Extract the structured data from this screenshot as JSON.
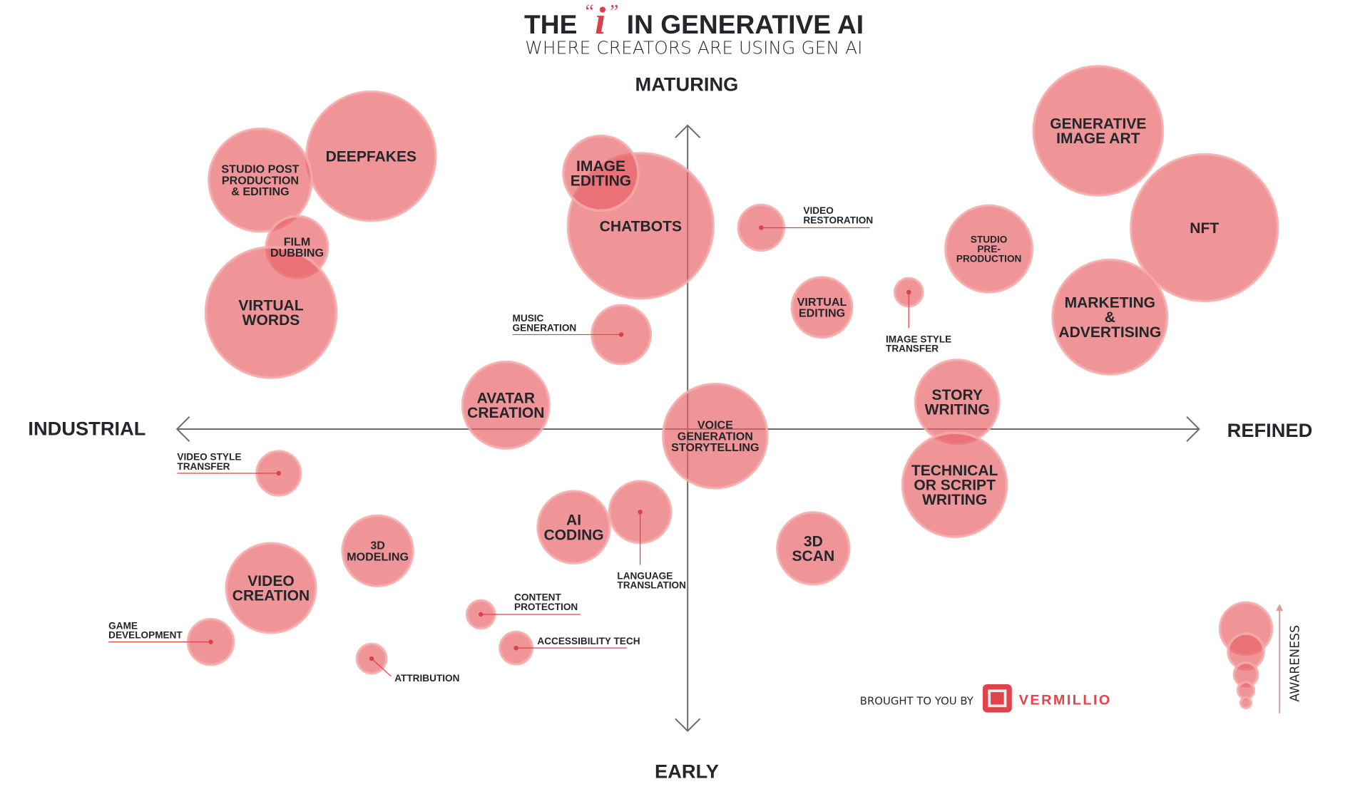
{
  "header": {
    "title_before": "THE",
    "title_i": "i",
    "title_after": "IN GENERATIVE AI",
    "subtitle": "WHERE CREATORS ARE USING GEN AI"
  },
  "footer": {
    "brought_by": "BROUGHT TO YOU BY",
    "brand": "VERMILLIO"
  },
  "colors": {
    "bubble": "#ee8f90",
    "accent": "#e0434b",
    "text": "#23262b"
  },
  "chart_data": {
    "type": "scatter",
    "title": "THE \"i\" IN GENERATIVE AI",
    "subtitle": "WHERE CREATORS ARE USING GEN AI",
    "axes": {
      "x": {
        "min_label": "INDUSTRIAL",
        "max_label": "REFINED",
        "range": [
          -100,
          100
        ]
      },
      "y": {
        "min_label": "EARLY",
        "max_label": "MATURING",
        "range": [
          -100,
          100
        ]
      }
    },
    "size_legend": {
      "label": "AWARENESS",
      "sizes": [
        70,
        48,
        32,
        22,
        14
      ]
    },
    "grid": false,
    "points": [
      {
        "lines": [
          "DEEPFAKES"
        ],
        "x": -62.0,
        "y": 90.1,
        "awareness": 88,
        "text": "lg",
        "label": "inside"
      },
      {
        "lines": [
          "STUDIO POST",
          "PRODUCTION",
          "& EDITING"
        ],
        "x": -83.7,
        "y": 82.2,
        "awareness": 70,
        "text": "md",
        "label": "inside"
      },
      {
        "lines": [
          "FILM",
          "DUBBING"
        ],
        "x": -76.5,
        "y": 60.1,
        "awareness": 42,
        "text": "md",
        "label": "inside"
      },
      {
        "lines": [
          "VIRTUAL",
          "WORDS"
        ],
        "x": -81.6,
        "y": 38.5,
        "awareness": 89,
        "text": "lg",
        "label": "inside"
      },
      {
        "lines": [
          "CHATBOTS"
        ],
        "x": -9.2,
        "y": 67.1,
        "awareness": 99,
        "text": "lg",
        "label": "inside"
      },
      {
        "lines": [
          "IMAGE",
          "EDITING"
        ],
        "x": -17.0,
        "y": 84.5,
        "awareness": 51,
        "text": "lg",
        "label": "inside"
      },
      {
        "lines": [
          "VIDEO",
          "RESTORATION"
        ],
        "x": 14.4,
        "y": 66.5,
        "awareness": 31,
        "text": "sm",
        "label": "right"
      },
      {
        "lines": [
          "MUSIC",
          "GENERATION"
        ],
        "x": -13.0,
        "y": 31.2,
        "awareness": 40,
        "text": "sm",
        "label": "left"
      },
      {
        "lines": [
          "VIRTUAL",
          "EDITING"
        ],
        "x": 26.3,
        "y": 40.2,
        "awareness": 41,
        "text": "md",
        "label": "inside"
      },
      {
        "lines": [
          "IMAGE STYLE",
          "TRANSFER"
        ],
        "x": 43.3,
        "y": 45.2,
        "awareness": 19,
        "text": "sm",
        "label": "below"
      },
      {
        "lines": [
          "STUDIO",
          "PRE-",
          "PRODUCTION"
        ],
        "x": 59.0,
        "y": 59.5,
        "awareness": 59,
        "text": "sm",
        "label": "inside"
      },
      {
        "lines": [
          "GENERATIVE",
          "IMAGE ART"
        ],
        "x": 80.4,
        "y": 98.5,
        "awareness": 88,
        "text": "lg",
        "label": "inside"
      },
      {
        "lines": [
          "NFT"
        ],
        "x": 101.2,
        "y": 66.5,
        "awareness": 100,
        "text": "lg",
        "label": "inside"
      },
      {
        "lines": [
          "MARKETING",
          "&",
          "ADVERTISING"
        ],
        "x": 82.7,
        "y": 37.0,
        "awareness": 78,
        "text": "lg",
        "label": "inside"
      },
      {
        "lines": [
          "AVATAR",
          "CREATION"
        ],
        "x": -35.6,
        "y": 7.9,
        "awareness": 59,
        "text": "lg",
        "label": "inside"
      },
      {
        "lines": [
          "VOICE",
          "GENERATION",
          "STORYTELLING"
        ],
        "x": 5.4,
        "y": -2.3,
        "awareness": 71,
        "text": "md",
        "label": "inside"
      },
      {
        "lines": [
          "STORY",
          "WRITING"
        ],
        "x": 52.8,
        "y": 9.0,
        "awareness": 57,
        "text": "lg",
        "label": "inside"
      },
      {
        "lines": [
          "TECHNICAL",
          "OR SCRIPT",
          "WRITING"
        ],
        "x": 52.3,
        "y": -18.4,
        "awareness": 71,
        "text": "lg",
        "label": "inside"
      },
      {
        "lines": [
          "VIDEO STYLE",
          "TRANSFER"
        ],
        "x": -80.1,
        "y": -14.6,
        "awareness": 30,
        "text": "sm",
        "label": "left"
      },
      {
        "lines": [
          "AI",
          "CODING"
        ],
        "x": -22.3,
        "y": -32.4,
        "awareness": 49,
        "text": "lg",
        "label": "inside"
      },
      {
        "lines": [
          "LANGUAGE",
          "TRANSLATION"
        ],
        "x": -9.3,
        "y": -27.4,
        "awareness": 42,
        "text": "sm",
        "label": "below"
      },
      {
        "lines": [
          "3D",
          "SCAN"
        ],
        "x": 24.6,
        "y": -39.4,
        "awareness": 49,
        "text": "lg",
        "label": "inside"
      },
      {
        "lines": [
          "3D",
          "MODELING"
        ],
        "x": -60.7,
        "y": -40.2,
        "awareness": 48,
        "text": "md",
        "label": "inside"
      },
      {
        "lines": [
          "VIDEO",
          "CREATION"
        ],
        "x": -81.6,
        "y": -52.5,
        "awareness": 61,
        "text": "lg",
        "label": "inside"
      },
      {
        "lines": [
          "CONTENT",
          "PROTECTION"
        ],
        "x": -40.5,
        "y": -61.2,
        "awareness": 19,
        "text": "sm",
        "label": "right"
      },
      {
        "lines": [
          "ACCESSIBILITY TECH"
        ],
        "x": -33.6,
        "y": -72.3,
        "awareness": 22,
        "text": "sm",
        "label": "right"
      },
      {
        "lines": [
          "GAME",
          "DEVELOPMENT"
        ],
        "x": -93.4,
        "y": -70.3,
        "awareness": 31,
        "text": "sm",
        "label": "left"
      },
      {
        "lines": [
          "ATTRIBUTION"
        ],
        "x": -61.9,
        "y": -75.8,
        "awareness": 20,
        "text": "sm",
        "label": "diag"
      }
    ]
  }
}
